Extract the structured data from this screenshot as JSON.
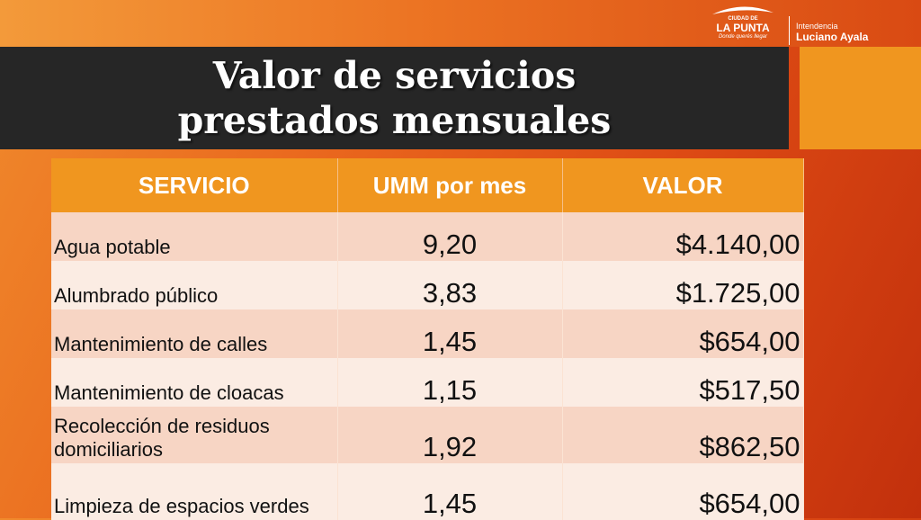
{
  "slide": {
    "title_line1": "Valor de servicios",
    "title_line2": "prestados mensuales"
  },
  "logo": {
    "city_small": "CIUDAD DE",
    "city_name": "LA PUNTA",
    "city_tagline": "Donde querés llegar",
    "office_label": "Intendencia",
    "office_name": "Luciano Ayala"
  },
  "table": {
    "headers": [
      "SERVICIO",
      "UMM por mes",
      "VALOR"
    ],
    "rows": [
      {
        "servicio": "Agua potable",
        "umm": "9,20",
        "valor": "$4.140,00"
      },
      {
        "servicio": "Alumbrado público",
        "umm": "3,83",
        "valor": "$1.725,00"
      },
      {
        "servicio": "Mantenimiento de calles",
        "umm": "1,45",
        "valor": "$654,00"
      },
      {
        "servicio": "Mantenimiento de cloacas",
        "umm": "1,15",
        "valor": "$517,50"
      },
      {
        "servicio": "Recolección de residuos domiciliarios",
        "umm": "1,92",
        "valor": "$862,50"
      },
      {
        "servicio": "Limpieza de espacios verdes",
        "umm": "1,45",
        "valor": "$654,00"
      }
    ]
  },
  "colors": {
    "title_bar": "#262626",
    "header_orange": "#f0961f",
    "row_dark": "#f7d5c4",
    "row_light": "#fbece3"
  }
}
